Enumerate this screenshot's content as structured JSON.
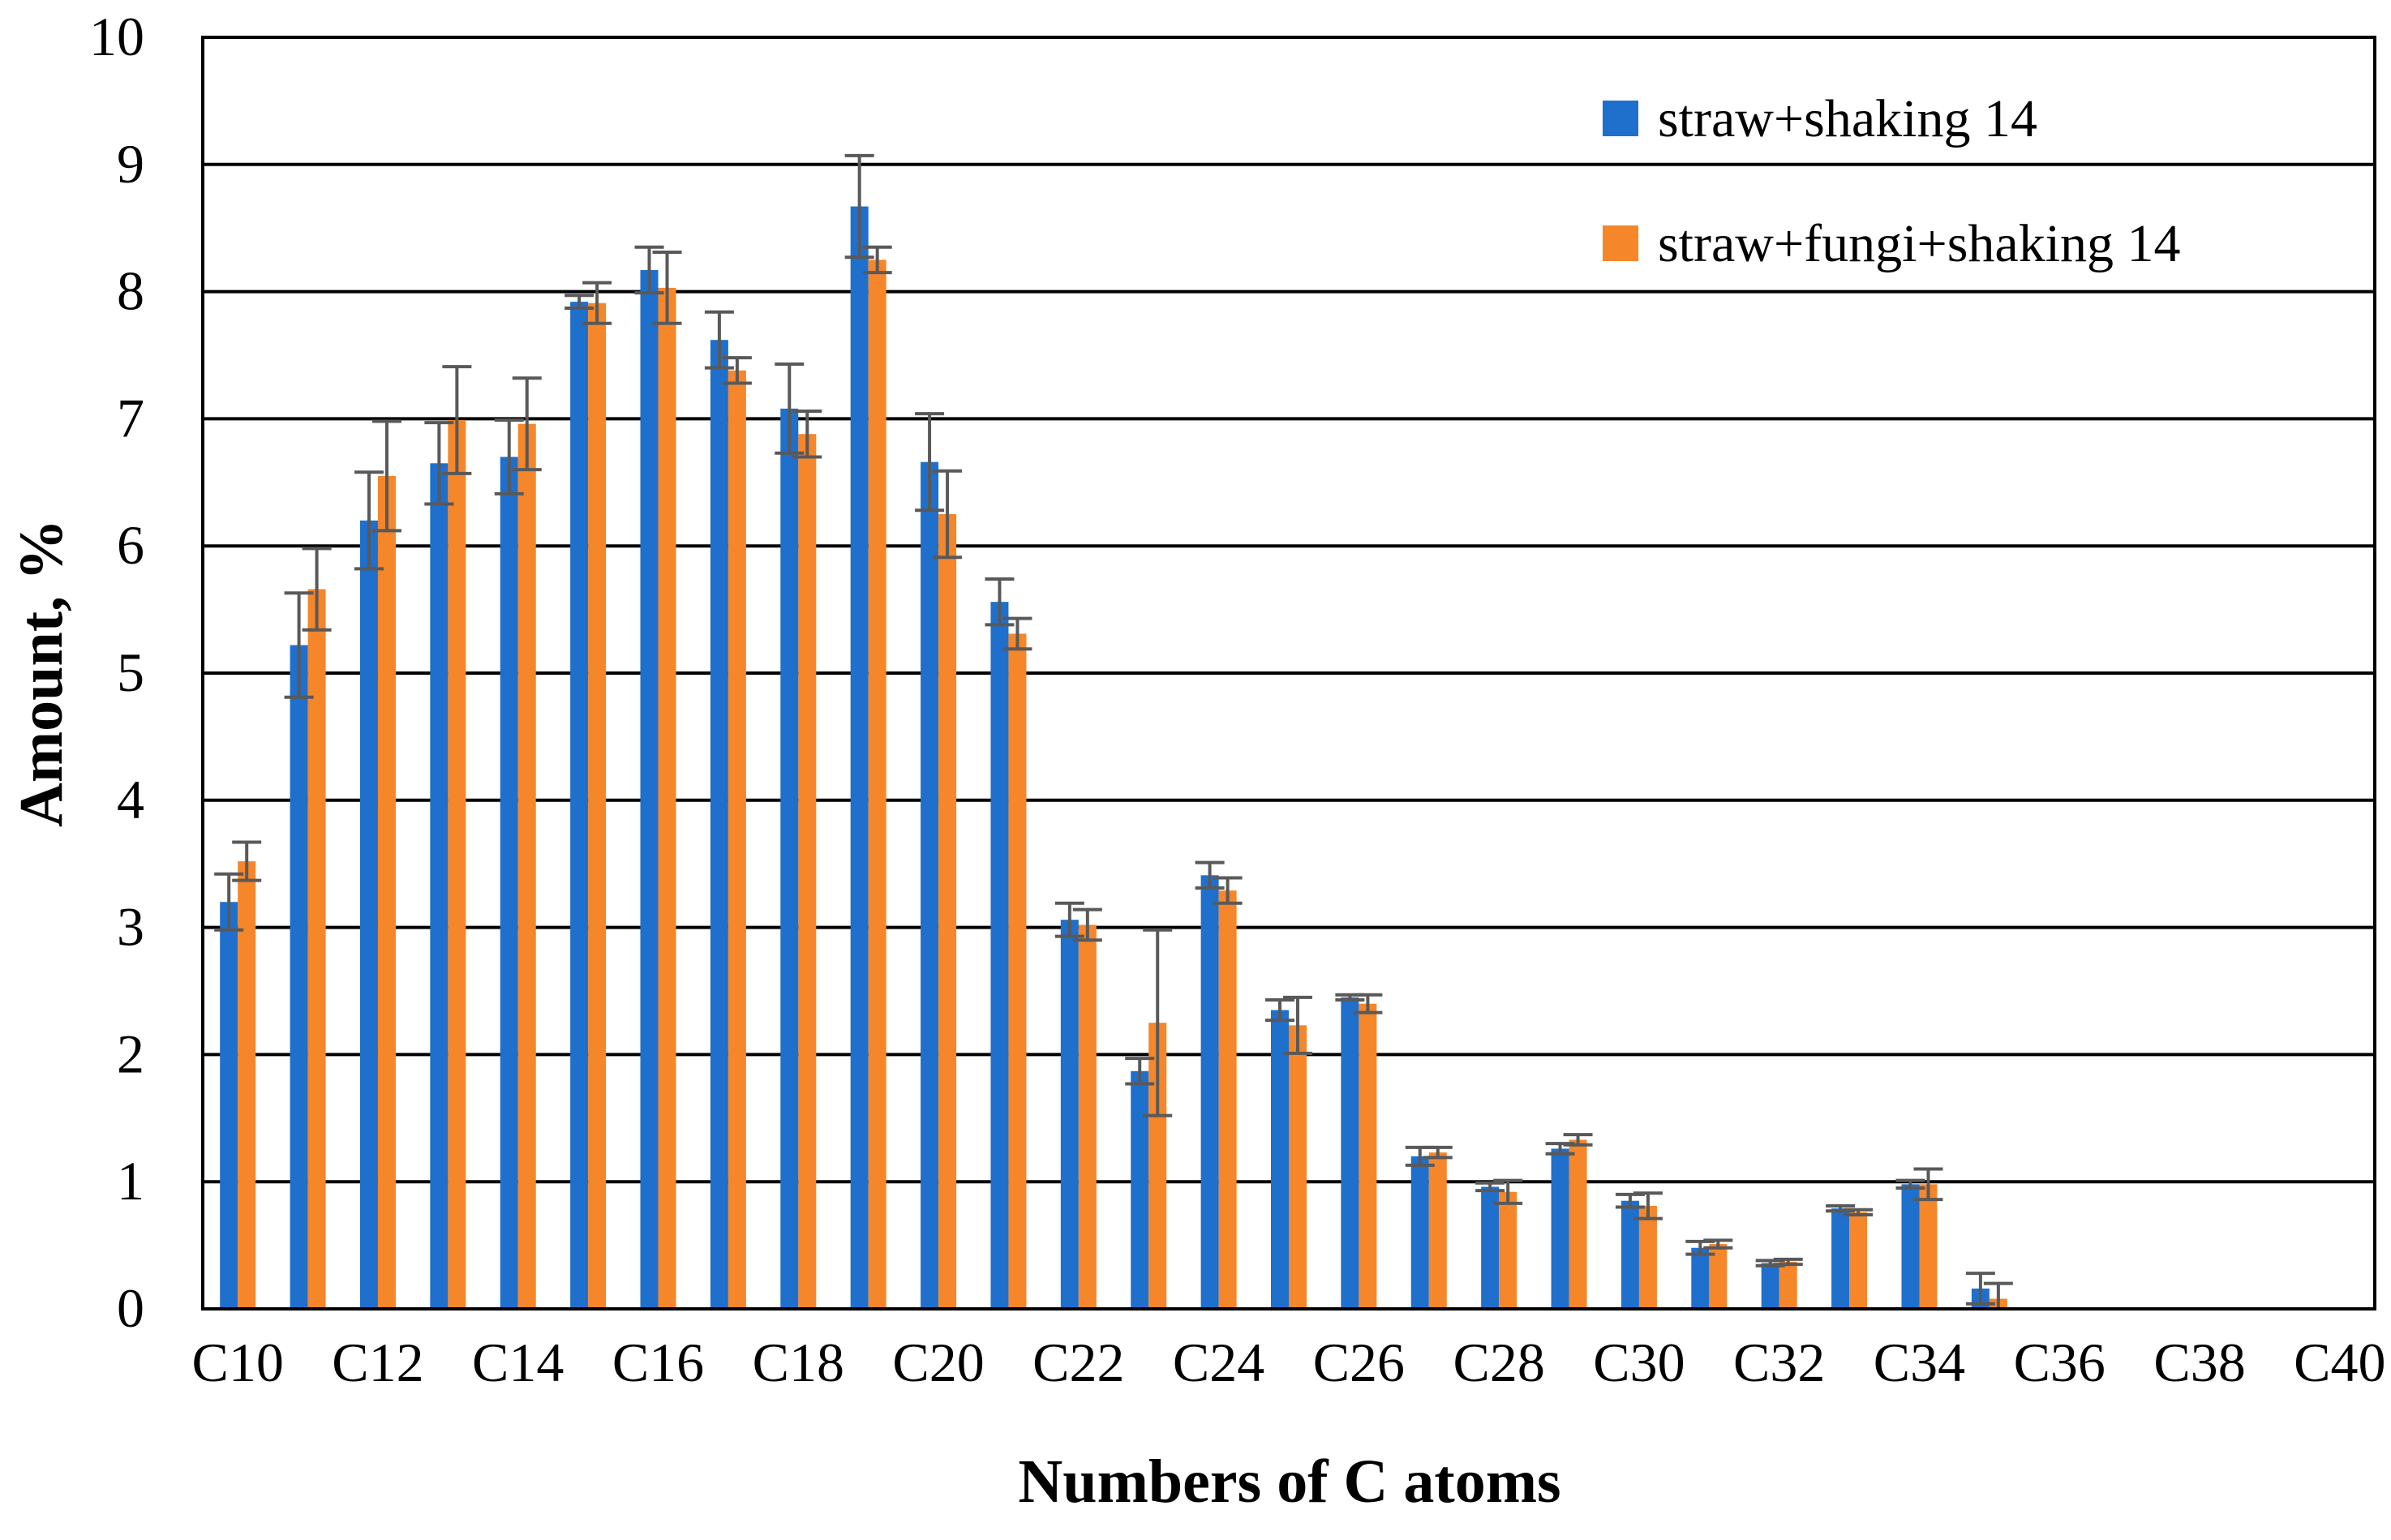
{
  "chart_data": {
    "type": "bar",
    "title": "",
    "xlabel": "Numbers of C atoms",
    "ylabel": "Amount, %",
    "ylim": [
      0,
      10
    ],
    "yticks": [
      "0",
      "1",
      "2",
      "3",
      "4",
      "5",
      "6",
      "7",
      "8",
      "9",
      "10"
    ],
    "categories": [
      "C10",
      "C11",
      "C12",
      "C13",
      "C14",
      "C15",
      "C16",
      "C17",
      "C18",
      "C19",
      "C20",
      "C21",
      "C22",
      "C23",
      "C24",
      "C25",
      "C26",
      "C27",
      "C28",
      "C29",
      "C30",
      "C31",
      "C32",
      "C33",
      "C34",
      "C35",
      "C36",
      "C37",
      "C38",
      "C39",
      "C40"
    ],
    "xtick_labels": [
      "C10",
      "C12",
      "C14",
      "C16",
      "C18",
      "C20",
      "C22",
      "C24",
      "C26",
      "C28",
      "C30",
      "C32",
      "C34",
      "C36",
      "C38",
      "C40"
    ],
    "grid": true,
    "legend_position": "top-right",
    "series": [
      {
        "name": "straw+shaking 14",
        "color": "#1f6fcd",
        "values": [
          3.2,
          5.22,
          6.2,
          6.65,
          6.7,
          7.92,
          8.17,
          7.62,
          7.08,
          8.67,
          6.66,
          5.56,
          3.06,
          1.87,
          3.41,
          2.35,
          2.45,
          1.2,
          0.96,
          1.26,
          0.85,
          0.48,
          0.36,
          0.79,
          0.98,
          0.16,
          0,
          0,
          0,
          0,
          0
        ],
        "errors": [
          0.22,
          0.41,
          0.38,
          0.32,
          0.29,
          0.05,
          0.18,
          0.22,
          0.35,
          0.4,
          0.38,
          0.18,
          0.13,
          0.1,
          0.1,
          0.08,
          0.02,
          0.07,
          0.03,
          0.04,
          0.05,
          0.05,
          0.02,
          0.02,
          0.03,
          0.12,
          0,
          0,
          0,
          0,
          0
        ]
      },
      {
        "name": "straw+fungi+shaking 14",
        "color": "#f5862a",
        "values": [
          3.52,
          5.66,
          6.55,
          6.99,
          6.96,
          7.91,
          8.03,
          7.38,
          6.88,
          8.25,
          6.25,
          5.31,
          3.02,
          2.25,
          3.29,
          2.23,
          2.4,
          1.23,
          0.92,
          1.33,
          0.81,
          0.51,
          0.37,
          0.76,
          0.98,
          0.08,
          0,
          0,
          0,
          0,
          0
        ],
        "errors": [
          0.15,
          0.32,
          0.43,
          0.42,
          0.36,
          0.16,
          0.28,
          0.1,
          0.18,
          0.1,
          0.34,
          0.12,
          0.12,
          0.73,
          0.1,
          0.22,
          0.07,
          0.04,
          0.09,
          0.04,
          0.1,
          0.03,
          0.02,
          0.02,
          0.12,
          0.12,
          0,
          0,
          0,
          0,
          0
        ]
      }
    ]
  }
}
